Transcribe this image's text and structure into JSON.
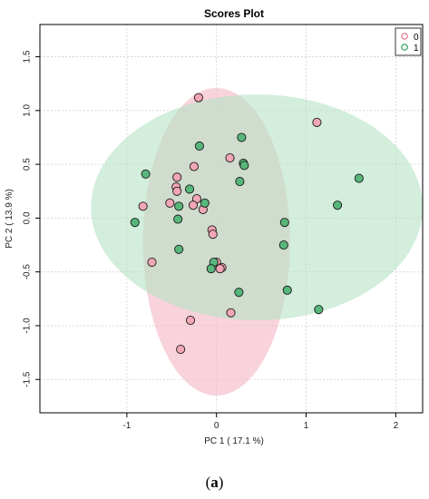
{
  "caption": {
    "open": "(",
    "letter": "a",
    "close": ")"
  },
  "chart_data": {
    "type": "scatter",
    "title": "Scores Plot",
    "xlabel": "PC 1 ( 17.1 %)",
    "ylabel": "PC 2 ( 13.9 %)",
    "xlim": [
      -1.97,
      2.3
    ],
    "ylim": [
      -1.81,
      1.8
    ],
    "xticks": [
      -1,
      0,
      1,
      2
    ],
    "yticks": [
      -1.5,
      -1.0,
      -0.5,
      0.0,
      0.5,
      1.0,
      1.5
    ],
    "grid": true,
    "legend_position": "top-right",
    "series": [
      {
        "name": "0",
        "color": "#e8738a",
        "fill": "#f1a6b4",
        "ellipse": {
          "cx": -0.0,
          "cy": -0.22,
          "rx": 0.82,
          "ry": 1.43,
          "fill": "#f4b5c4"
        },
        "points": [
          {
            "x": -0.2,
            "y": 1.12
          },
          {
            "x": 1.12,
            "y": 0.89
          },
          {
            "x": 0.15,
            "y": 0.56
          },
          {
            "x": -0.25,
            "y": 0.48
          },
          {
            "x": -0.44,
            "y": 0.38
          },
          {
            "x": -0.45,
            "y": 0.29
          },
          {
            "x": -0.44,
            "y": 0.25
          },
          {
            "x": -0.22,
            "y": 0.18
          },
          {
            "x": -0.52,
            "y": 0.14
          },
          {
            "x": -0.26,
            "y": 0.12
          },
          {
            "x": -0.82,
            "y": 0.11
          },
          {
            "x": -0.15,
            "y": 0.08
          },
          {
            "x": -0.05,
            "y": -0.11
          },
          {
            "x": -0.04,
            "y": -0.15
          },
          {
            "x": -0.72,
            "y": -0.41
          },
          {
            "x": 0.0,
            "y": -0.41
          },
          {
            "x": 0.06,
            "y": -0.46
          },
          {
            "x": 0.04,
            "y": -0.47
          },
          {
            "x": 0.16,
            "y": -0.88
          },
          {
            "x": -0.29,
            "y": -0.95
          },
          {
            "x": -0.4,
            "y": -1.22
          }
        ]
      },
      {
        "name": "1",
        "color": "#2e9e58",
        "fill": "#57b67a",
        "ellipse": {
          "cx": 0.45,
          "cy": 0.1,
          "rx": 1.85,
          "ry": 1.05,
          "fill": "#b6e3c4"
        },
        "points": [
          {
            "x": 0.28,
            "y": 0.75
          },
          {
            "x": -0.19,
            "y": 0.67
          },
          {
            "x": 0.3,
            "y": 0.51
          },
          {
            "x": 0.31,
            "y": 0.49
          },
          {
            "x": -0.79,
            "y": 0.41
          },
          {
            "x": 1.59,
            "y": 0.37
          },
          {
            "x": 0.26,
            "y": 0.34
          },
          {
            "x": -0.3,
            "y": 0.27
          },
          {
            "x": -0.13,
            "y": 0.14
          },
          {
            "x": 1.35,
            "y": 0.12
          },
          {
            "x": -0.42,
            "y": 0.11
          },
          {
            "x": -0.43,
            "y": -0.01
          },
          {
            "x": -0.91,
            "y": -0.04
          },
          {
            "x": 0.76,
            "y": -0.04
          },
          {
            "x": 0.75,
            "y": -0.25
          },
          {
            "x": -0.42,
            "y": -0.29
          },
          {
            "x": -0.03,
            "y": -0.41
          },
          {
            "x": -0.06,
            "y": -0.47
          },
          {
            "x": 0.25,
            "y": -0.69
          },
          {
            "x": 0.79,
            "y": -0.67
          },
          {
            "x": 1.14,
            "y": -0.85
          }
        ]
      }
    ]
  }
}
